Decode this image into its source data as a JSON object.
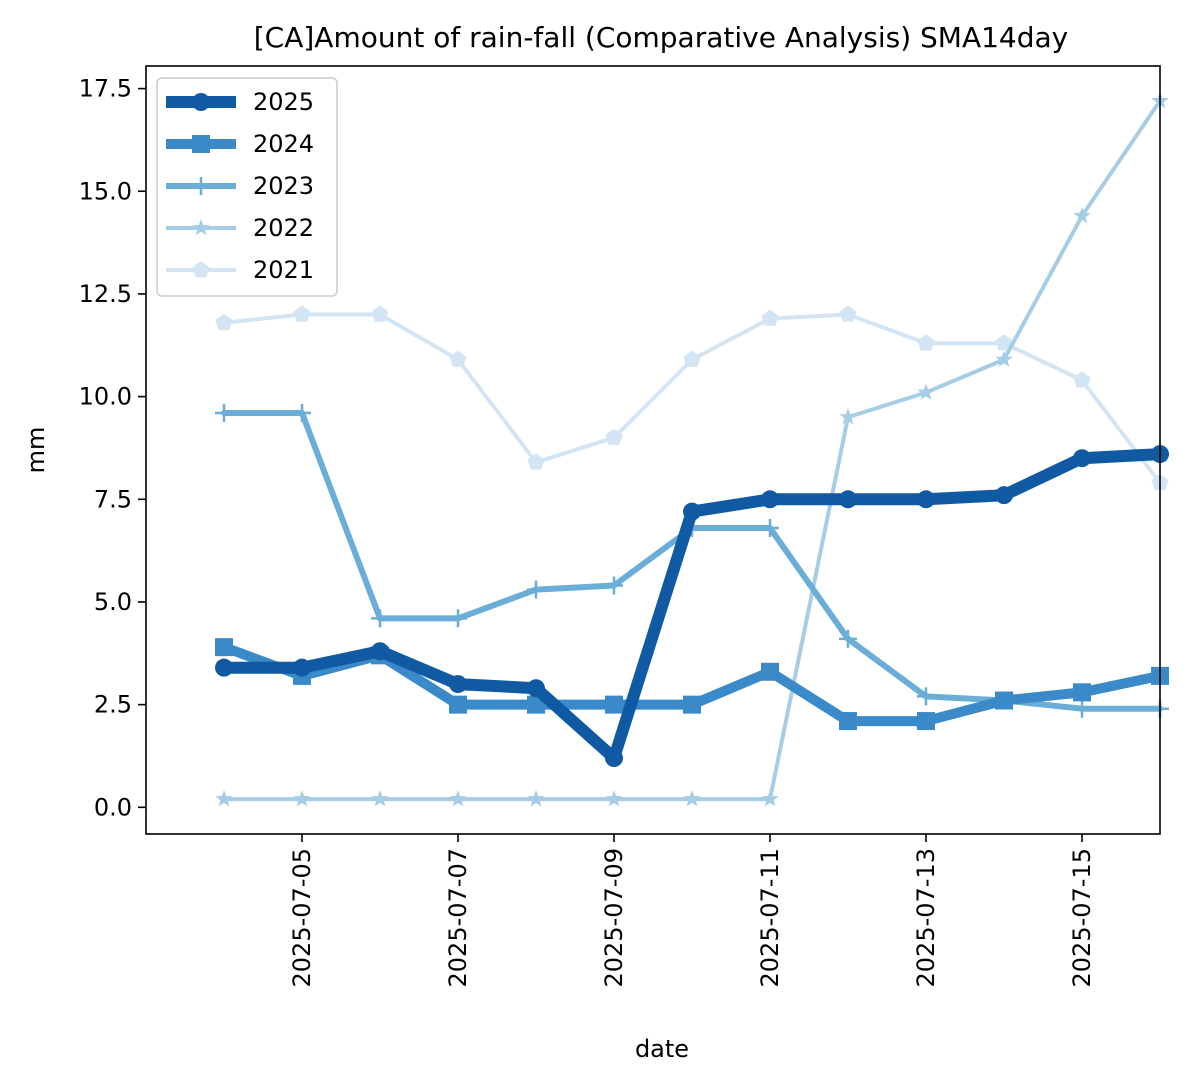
{
  "chart_data": {
    "type": "line",
    "title": "[CA]Amount of rain-fall (Comparative Analysis) SMA14day",
    "xlabel": "date",
    "ylabel": "mm",
    "ylim": [
      -0.65,
      18.05
    ],
    "xlim": [
      "2025-07-03",
      "2025-07-16"
    ],
    "grid": false,
    "legend_position": "top-left",
    "x": [
      "2025-07-04",
      "2025-07-05",
      "2025-07-06",
      "2025-07-07",
      "2025-07-08",
      "2025-07-09",
      "2025-07-10",
      "2025-07-11",
      "2025-07-12",
      "2025-07-13",
      "2025-07-14",
      "2025-07-15",
      "2025-07-16"
    ],
    "x_ticks": [
      "2025-07-05",
      "2025-07-07",
      "2025-07-09",
      "2025-07-11",
      "2025-07-13",
      "2025-07-15"
    ],
    "y_ticks": [
      "0.0",
      "2.5",
      "5.0",
      "7.5",
      "10.0",
      "12.5",
      "15.0",
      "17.5"
    ],
    "series": [
      {
        "name": "2025",
        "color": "#1059a3",
        "marker": "circle",
        "values": [
          3.4,
          3.4,
          3.8,
          3.0,
          2.9,
          1.2,
          7.2,
          7.5,
          7.5,
          7.5,
          7.6,
          8.5,
          8.6
        ]
      },
      {
        "name": "2024",
        "color": "#3a89c8",
        "marker": "square",
        "values": [
          3.9,
          3.2,
          3.7,
          2.5,
          2.5,
          2.5,
          2.5,
          3.3,
          2.1,
          2.1,
          2.6,
          2.8,
          3.2
        ]
      },
      {
        "name": "2023",
        "color": "#6aaed7",
        "marker": "plus",
        "values": [
          9.6,
          9.6,
          4.6,
          4.6,
          5.3,
          5.4,
          6.8,
          6.8,
          4.1,
          2.7,
          2.6,
          2.4,
          2.4
        ]
      },
      {
        "name": "2022",
        "color": "#a6cde6",
        "marker": "star",
        "values": [
          0.2,
          0.2,
          0.2,
          0.2,
          0.2,
          0.2,
          0.2,
          0.2,
          9.5,
          10.1,
          10.9,
          14.4,
          17.2
        ]
      },
      {
        "name": "2021",
        "color": "#d3e5f5",
        "marker": "pentagon",
        "values": [
          11.8,
          12.0,
          12.0,
          10.9,
          8.4,
          9.0,
          10.9,
          11.9,
          12.0,
          11.3,
          11.3,
          10.4,
          7.9
        ]
      }
    ]
  }
}
